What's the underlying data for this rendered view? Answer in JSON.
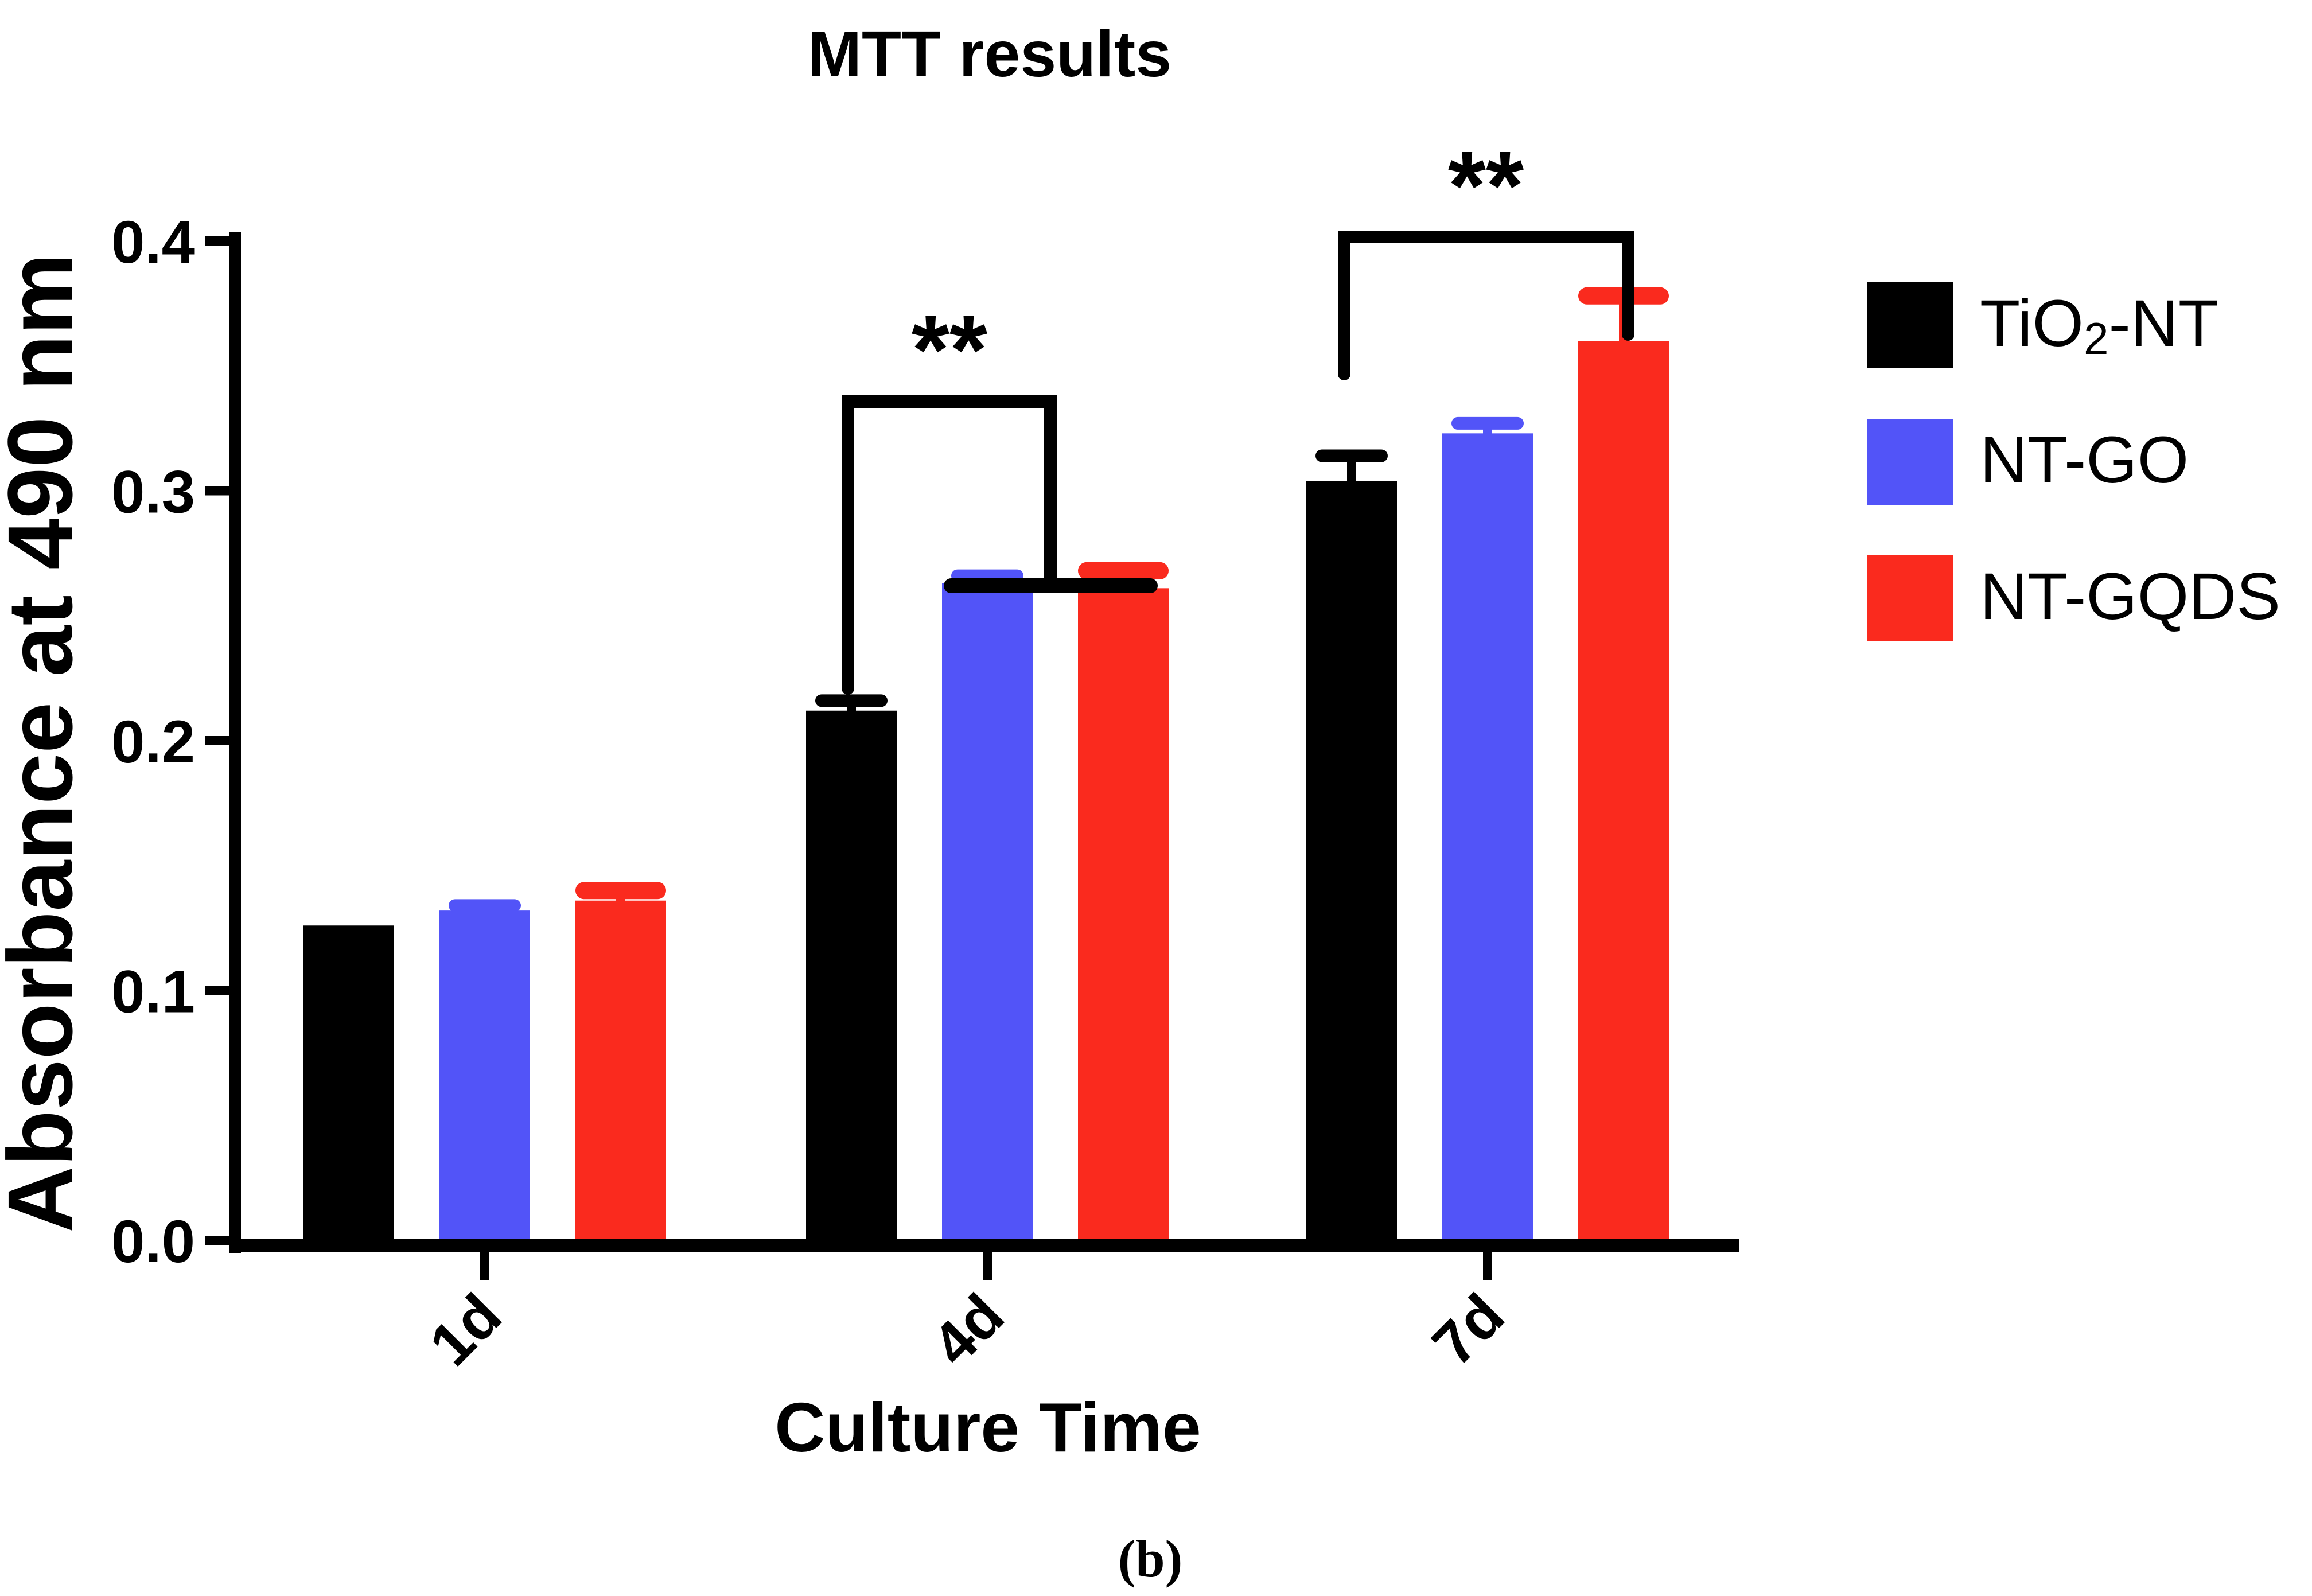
{
  "caption": {
    "label": "(b)"
  },
  "legend": {
    "items": [
      {
        "name": "TiO2-NT",
        "pre": "TiO",
        "sub": "2",
        "post": "-NT"
      },
      {
        "name": "NT-GO",
        "pre": "NT-GO",
        "sub": "",
        "post": ""
      },
      {
        "name": "NT-GQDS",
        "pre": "NT-GQDS",
        "sub": "",
        "post": ""
      }
    ]
  },
  "chart_data": {
    "type": "bar",
    "title": "MTT results",
    "xlabel": "Culture Time",
    "ylabel": "Absorbance at 490 nm",
    "categories": [
      "1d",
      "4d",
      "7d"
    ],
    "series": [
      {
        "name": "TiO2-NT",
        "color": "#000000",
        "values": [
          0.126,
          0.212,
          0.304
        ],
        "errors": [
          0,
          0.004,
          0.01
        ]
      },
      {
        "name": "NT-GO",
        "color": "#5254f8",
        "values": [
          0.132,
          0.263,
          0.323
        ],
        "errors": [
          0.002,
          0.003,
          0.004
        ]
      },
      {
        "name": "NT-GQDS",
        "color": "#fa2a1e",
        "values": [
          0.136,
          0.261,
          0.36
        ],
        "errors": [
          0.004,
          0.007,
          0.018
        ]
      }
    ],
    "ylim": [
      0,
      0.4
    ],
    "yticks": [
      {
        "v": 0.0,
        "label": "0.0"
      },
      {
        "v": 0.1,
        "label": "0.1"
      },
      {
        "v": 0.2,
        "label": "0.2"
      },
      {
        "v": 0.3,
        "label": "0.3"
      },
      {
        "v": 0.4,
        "label": "0.4"
      }
    ],
    "grid": false,
    "legend_position": "right",
    "significance": [
      {
        "label": "**",
        "at": "4d"
      },
      {
        "label": "**",
        "at": "7d"
      }
    ]
  }
}
